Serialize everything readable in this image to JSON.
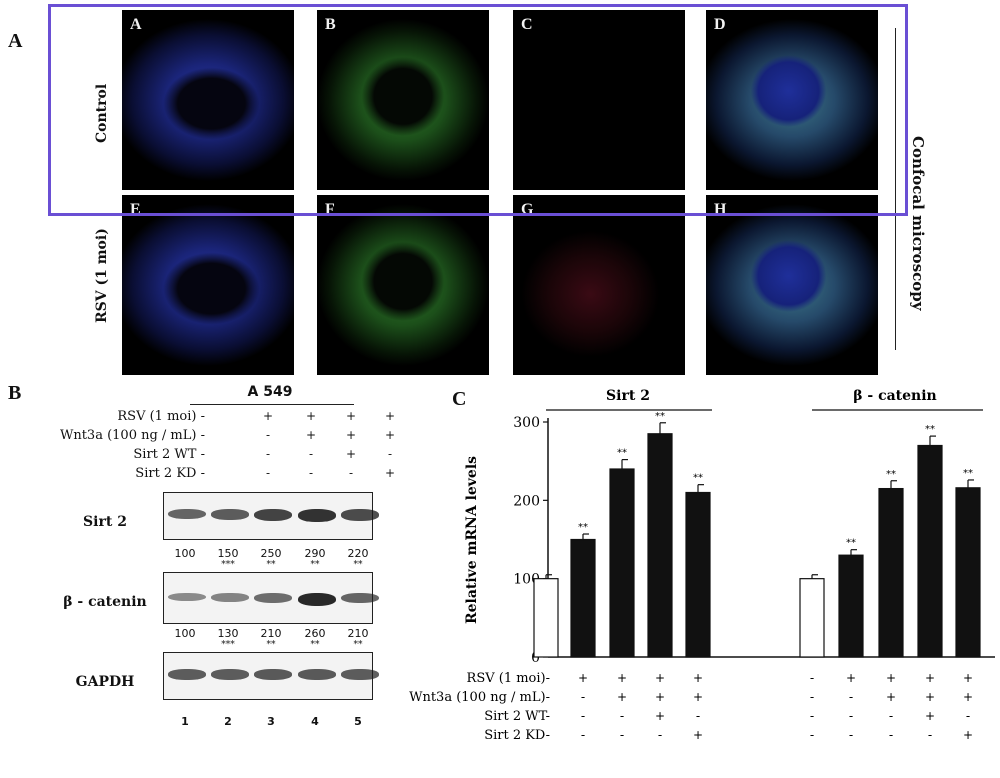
{
  "panels": {
    "a": "A",
    "b": "B",
    "c": "C"
  },
  "confocal": {
    "side_title": "Confocal microscopy",
    "row_labels": [
      "Control",
      "RSV (1 moi)"
    ],
    "images": [
      {
        "label": "A",
        "channel": "blue"
      },
      {
        "label": "B",
        "channel": "green"
      },
      {
        "label": "C",
        "channel": "empty"
      },
      {
        "label": "D",
        "channel": "merge"
      },
      {
        "label": "E",
        "channel": "blue"
      },
      {
        "label": "F",
        "channel": "green"
      },
      {
        "label": "G",
        "channel": "red"
      },
      {
        "label": "H",
        "channel": "merge"
      }
    ],
    "highlight_color": "#6a4fd4"
  },
  "western": {
    "cell_line": "A 549",
    "rows": [
      {
        "label": "RSV (1 moi)",
        "marks": [
          "-",
          "+",
          "+",
          "+",
          "+"
        ]
      },
      {
        "label": "Wnt3a (100 ng / mL)",
        "marks": [
          "-",
          "-",
          "+",
          "+",
          "+"
        ]
      },
      {
        "label": "Sirt 2 WT",
        "marks": [
          "-",
          "-",
          "-",
          "+",
          "-"
        ]
      },
      {
        "label": "Sirt 2 KD",
        "marks": [
          "-",
          "-",
          "-",
          "-",
          "+"
        ]
      }
    ],
    "blots": [
      {
        "label": "Sirt 2",
        "quant": [
          "100",
          "150",
          "250",
          "290",
          "220"
        ],
        "stars": [
          "",
          "***",
          "**",
          "**",
          "**"
        ]
      },
      {
        "label": "β - catenin",
        "quant": [
          "100",
          "130",
          "210",
          "260",
          "210"
        ],
        "stars": [
          "",
          "***",
          "**",
          "**",
          "**"
        ]
      },
      {
        "label": "GAPDH",
        "quant": [],
        "stars": []
      }
    ],
    "lanes": [
      "1",
      "2",
      "3",
      "4",
      "5"
    ]
  },
  "chart_data": {
    "type": "bar",
    "ylabel": "Relative mRNA levels",
    "ylim": [
      0,
      300
    ],
    "yticks": [
      0,
      100,
      200,
      300
    ],
    "groups": [
      {
        "name": "Sirt 2",
        "values": [
          100,
          150,
          240,
          285,
          210
        ],
        "errors": [
          5,
          7,
          12,
          14,
          10
        ],
        "stars": [
          "",
          "**",
          "**",
          "**",
          "**"
        ]
      },
      {
        "name": "β - catenin",
        "values": [
          100,
          130,
          215,
          270,
          216
        ],
        "errors": [
          5,
          7,
          10,
          12,
          10
        ],
        "stars": [
          "",
          "**",
          "**",
          "**",
          "**"
        ]
      }
    ],
    "conditions": [
      {
        "label": "RSV (1 moi)",
        "marks": [
          "-",
          "+",
          "+",
          "+",
          "+"
        ]
      },
      {
        "label": "Wnt3a (100 ng / mL)",
        "marks": [
          "-",
          "-",
          "+",
          "+",
          "+"
        ]
      },
      {
        "label": "Sirt 2 WT",
        "marks": [
          "-",
          "-",
          "-",
          "+",
          "-"
        ]
      },
      {
        "label": "Sirt 2 KD",
        "marks": [
          "-",
          "-",
          "-",
          "-",
          "+"
        ]
      }
    ]
  }
}
